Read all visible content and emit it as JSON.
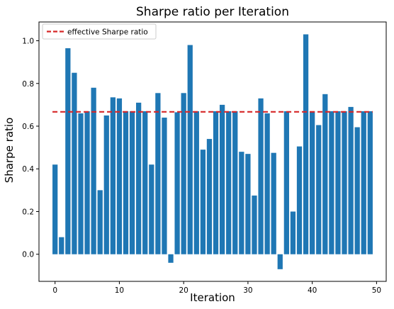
{
  "chart_data": {
    "type": "bar",
    "title": "Sharpe ratio per Iteration",
    "xlabel": "Iteration",
    "ylabel": "Sharpe ratio",
    "x": [
      0,
      1,
      2,
      3,
      4,
      5,
      6,
      7,
      8,
      9,
      10,
      11,
      12,
      13,
      14,
      15,
      16,
      17,
      18,
      19,
      20,
      21,
      22,
      23,
      24,
      25,
      26,
      27,
      28,
      29,
      30,
      31,
      32,
      33,
      34,
      35,
      36,
      37,
      38,
      39,
      40,
      41,
      42,
      43,
      44,
      45,
      46,
      47,
      48,
      49
    ],
    "values": [
      0.42,
      0.08,
      0.965,
      0.85,
      0.66,
      0.67,
      0.78,
      0.3,
      0.65,
      0.735,
      0.73,
      0.67,
      0.67,
      0.71,
      0.67,
      0.42,
      0.755,
      0.64,
      -0.04,
      0.665,
      0.755,
      0.98,
      0.67,
      0.49,
      0.54,
      0.67,
      0.7,
      0.67,
      0.67,
      0.48,
      0.47,
      0.275,
      0.73,
      0.66,
      0.475,
      -0.07,
      0.67,
      0.2,
      0.505,
      1.03,
      0.67,
      0.605,
      0.75,
      0.67,
      0.67,
      0.67,
      0.69,
      0.595,
      0.67,
      0.67
    ],
    "bar_color": "#1f77b4",
    "reference_line": {
      "label": "effective Sharpe ratio",
      "value": 0.667,
      "color": "#d62728",
      "style": "dashed"
    },
    "xlim": [
      -2.5,
      51.5
    ],
    "ylim": [
      -0.127,
      1.088
    ],
    "xticks": [
      0,
      10,
      20,
      30,
      40,
      50
    ],
    "yticks": [
      0.0,
      0.2,
      0.4,
      0.6,
      0.8,
      1.0
    ],
    "xtick_labels": [
      "0",
      "10",
      "20",
      "30",
      "40",
      "50"
    ],
    "ytick_labels": [
      "0.0",
      "0.2",
      "0.4",
      "0.6",
      "0.8",
      "1.0"
    ],
    "grid": false,
    "legend_position": "top-left"
  }
}
